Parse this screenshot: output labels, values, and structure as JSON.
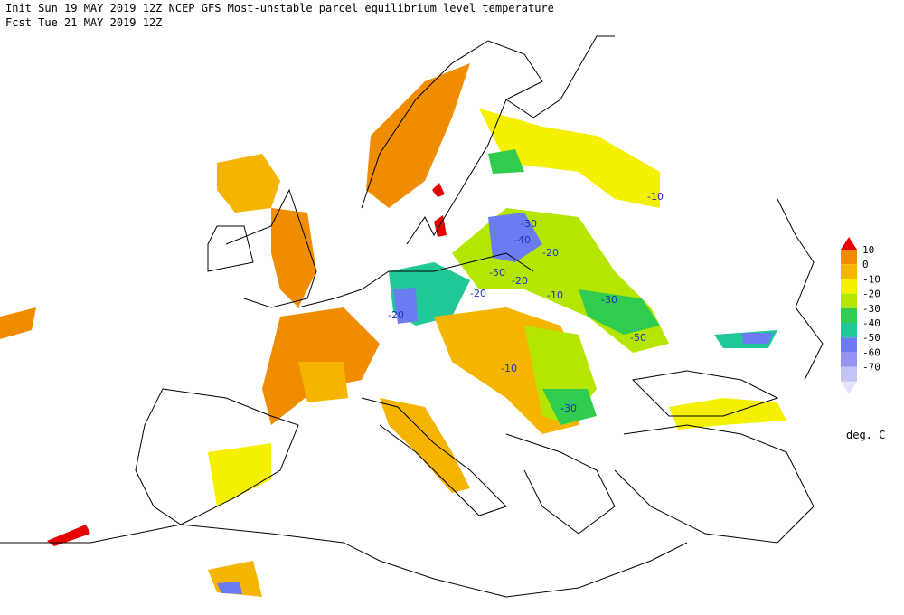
{
  "header": {
    "line1": "Init  Sun 19 MAY 2019 12Z  NCEP GFS Most-unstable parcel equilibrium level temperature",
    "line2": "Fcst Tue 21 MAY 2019 12Z"
  },
  "legend": {
    "labels": [
      "10",
      "0",
      "-10",
      "-20",
      "-30",
      "-40",
      "-50",
      "-60",
      "-70"
    ],
    "colors": [
      "#e60000",
      "#f08c00",
      "#f5b400",
      "#f5f000",
      "#b4e600",
      "#30cc50",
      "#20c898",
      "#6a7cf0",
      "#9494f2",
      "#c4c4f6",
      "#e4e4fa"
    ],
    "units": "deg. C"
  },
  "contour_labels": [
    "-10",
    "-30",
    "-40",
    "-20",
    "-50",
    "-20",
    "-20",
    "-10",
    "-30",
    "-20",
    "-50",
    "-10",
    "-30"
  ]
}
